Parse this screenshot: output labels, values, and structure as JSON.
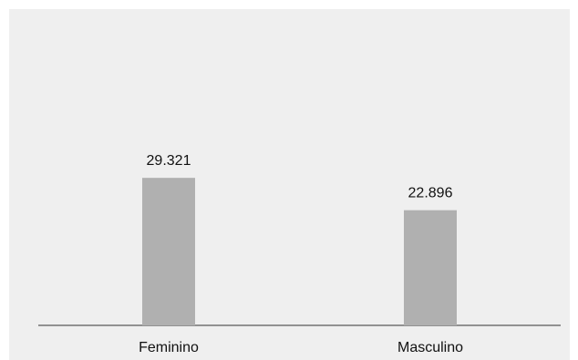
{
  "chart_data": {
    "type": "bar",
    "categories": [
      "Feminino",
      "Masculino"
    ],
    "values": [
      29321,
      22896
    ],
    "value_labels": [
      "29.321",
      "22.896"
    ],
    "title": "",
    "xlabel": "",
    "ylabel": "",
    "ylim": [
      0,
      52000
    ],
    "grid": false,
    "legend": "none",
    "colors": {
      "background": "#efefef",
      "bar": "#b0b0b0",
      "axis": "#333333",
      "text": "#111111"
    }
  }
}
